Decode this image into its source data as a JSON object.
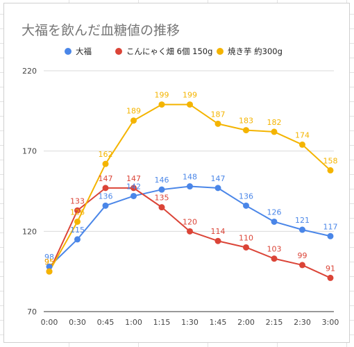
{
  "chart_data": {
    "type": "line",
    "title": "大福を飲んだ血糖値の推移",
    "xlabel": "",
    "ylabel": "",
    "ylim": [
      70,
      220
    ],
    "yticks": [
      70,
      120,
      170,
      220
    ],
    "grid": true,
    "legend_position": "top",
    "categories": [
      "0:00",
      "0:30",
      "0:45",
      "1:00",
      "1:15",
      "1:30",
      "1:45",
      "2:00",
      "2:15",
      "2:30",
      "3:00"
    ],
    "series": [
      {
        "name": "大福",
        "color": "#4a86e8",
        "x": [
          "0:00",
          "0:30",
          "0:45",
          "1:00",
          "1:15",
          "1:30",
          "1:45",
          "2:00",
          "2:15",
          "2:30",
          "3:00"
        ],
        "values": [
          98,
          115,
          136,
          142,
          146,
          148,
          147,
          136,
          126,
          121,
          117
        ]
      },
      {
        "name": "こんにゃく畑 6個 150g",
        "color": "#db4437",
        "x": [
          "0:00",
          "0:30",
          "0:45",
          "1:00",
          "1:15",
          "1:30",
          "1:45",
          "2:00",
          "2:15",
          "2:30",
          "3:00"
        ],
        "values": [
          95,
          133,
          147,
          147,
          135,
          120,
          114,
          110,
          103,
          99,
          91
        ]
      },
      {
        "name": "焼き芋 約300g",
        "color": "#f4b400",
        "x": [
          "0:00",
          "0:30",
          "0:45",
          "1:00",
          "1:15",
          "1:30",
          "1:45",
          "2:00",
          "2:15",
          "2:30",
          "3:00"
        ],
        "values": [
          95,
          126,
          162,
          189,
          199,
          199,
          187,
          183,
          182,
          174,
          158
        ]
      }
    ]
  }
}
